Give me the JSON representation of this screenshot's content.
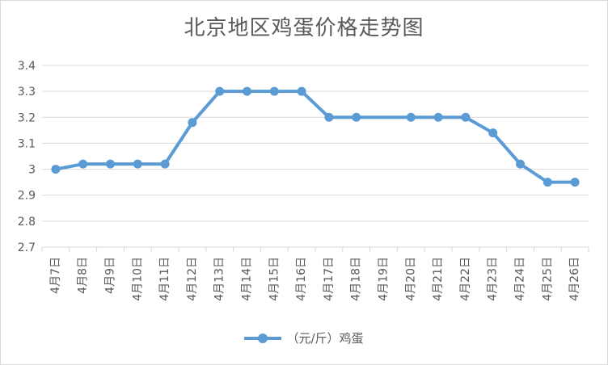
{
  "chart_data": {
    "type": "line",
    "title": "北京地区鸡蛋价格走势图",
    "xlabel": "",
    "ylabel": "",
    "categories": [
      "4月7日",
      "4月8日",
      "4月9日",
      "4月10日",
      "4月11日",
      "4月12日",
      "4月13日",
      "4月14日",
      "4月15日",
      "4月16日",
      "4月17日",
      "4月18日",
      "4月19日",
      "4月20日",
      "4月21日",
      "4月22日",
      "4月23日",
      "4月24日",
      "4月25日",
      "4月26日"
    ],
    "series": [
      {
        "name": "（元/斤）鸡蛋",
        "values": [
          3.0,
          3.02,
          3.02,
          3.02,
          3.02,
          3.18,
          3.3,
          3.3,
          3.3,
          3.3,
          3.2,
          3.2,
          null,
          3.2,
          3.2,
          3.2,
          3.14,
          3.02,
          2.95,
          2.95
        ],
        "color": "#5b9bd5"
      }
    ],
    "ylim": [
      2.7,
      3.4
    ],
    "yticks": [
      "2.7",
      "2.8",
      "2.9",
      "3",
      "3.1",
      "3.2",
      "3.3",
      "3.4"
    ],
    "grid": true,
    "legend_position": "bottom"
  }
}
